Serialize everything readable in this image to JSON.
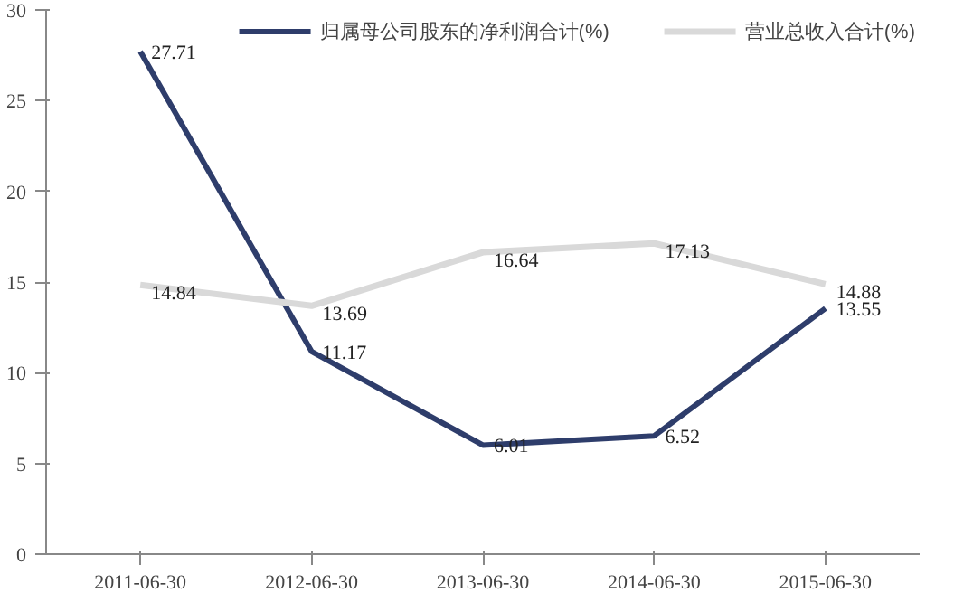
{
  "chart_data": {
    "type": "line",
    "categories": [
      "2011-06-30",
      "2012-06-30",
      "2013-06-30",
      "2014-06-30",
      "2015-06-30"
    ],
    "series": [
      {
        "name": "归属母公司股东的净利润合计(%)",
        "color": "#2e3d6b",
        "values": [
          27.71,
          11.17,
          6.01,
          6.52,
          13.55
        ]
      },
      {
        "name": "营业总收入合计(%)",
        "color": "#d9d9d9",
        "values": [
          14.84,
          13.69,
          16.64,
          17.13,
          14.88
        ]
      }
    ],
    "ylim": [
      0,
      30
    ],
    "yticks": [
      0,
      5,
      10,
      15,
      20,
      25,
      30
    ],
    "grid": false,
    "legend": "top",
    "data_labels": true,
    "marker": "none",
    "line_style": "solid"
  }
}
